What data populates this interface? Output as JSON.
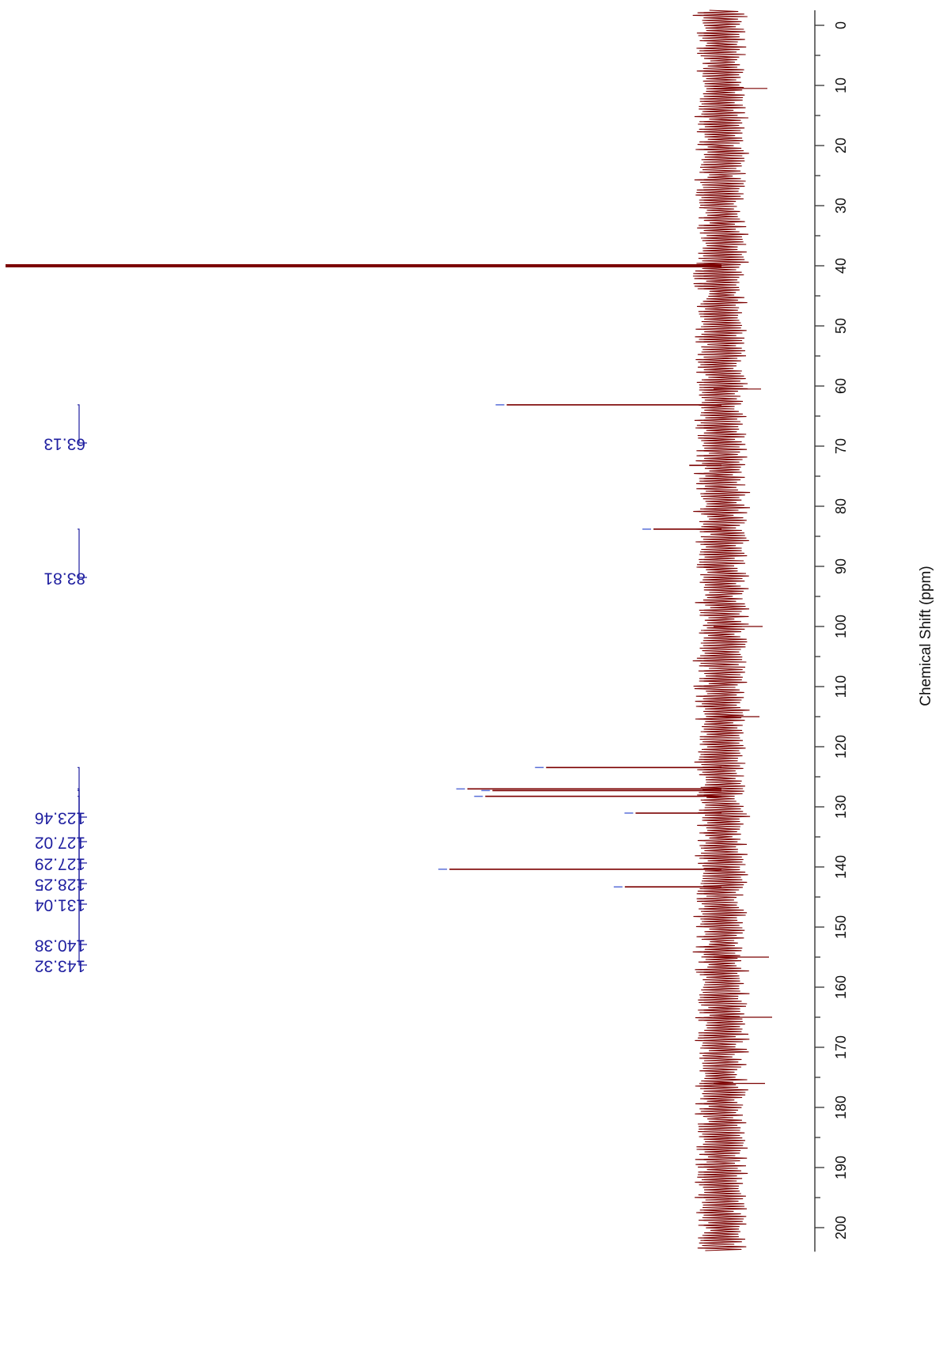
{
  "chart_data": {
    "type": "line",
    "orientation": "rotated-90-clockwise",
    "xlabel": "Chemical Shift (ppm)",
    "xlim": [
      -2.5,
      204
    ],
    "ticks": [
      0,
      10,
      20,
      30,
      40,
      50,
      60,
      70,
      80,
      90,
      100,
      110,
      120,
      130,
      140,
      150,
      160,
      170,
      180,
      190,
      200
    ],
    "minor_tick_step": 5,
    "y_axis_visible": false,
    "peaks": [
      {
        "x": 40.0,
        "intensity": 1.0,
        "labeled": false
      },
      {
        "x": 63.13,
        "intensity": 0.3,
        "labeled": true
      },
      {
        "x": 73.2,
        "intensity": 0.045,
        "labeled": false
      },
      {
        "x": 83.81,
        "intensity": 0.095,
        "labeled": true
      },
      {
        "x": 123.46,
        "intensity": 0.245,
        "labeled": true
      },
      {
        "x": 127.02,
        "intensity": 0.355,
        "labeled": true
      },
      {
        "x": 127.29,
        "intensity": 0.32,
        "labeled": true
      },
      {
        "x": 128.25,
        "intensity": 0.33,
        "labeled": true
      },
      {
        "x": 131.04,
        "intensity": 0.12,
        "labeled": true
      },
      {
        "x": 140.38,
        "intensity": 0.38,
        "labeled": true
      },
      {
        "x": 143.32,
        "intensity": 0.135,
        "labeled": true
      }
    ],
    "peak_labels": [
      "63.13",
      "83.81",
      "123.46",
      "127.02",
      "127.29",
      "128.25",
      "131.04",
      "140.38",
      "143.32"
    ],
    "colors": {
      "spectrum": "#7b0000",
      "labels": "#1f1fa0",
      "axis": "#333333"
    }
  }
}
